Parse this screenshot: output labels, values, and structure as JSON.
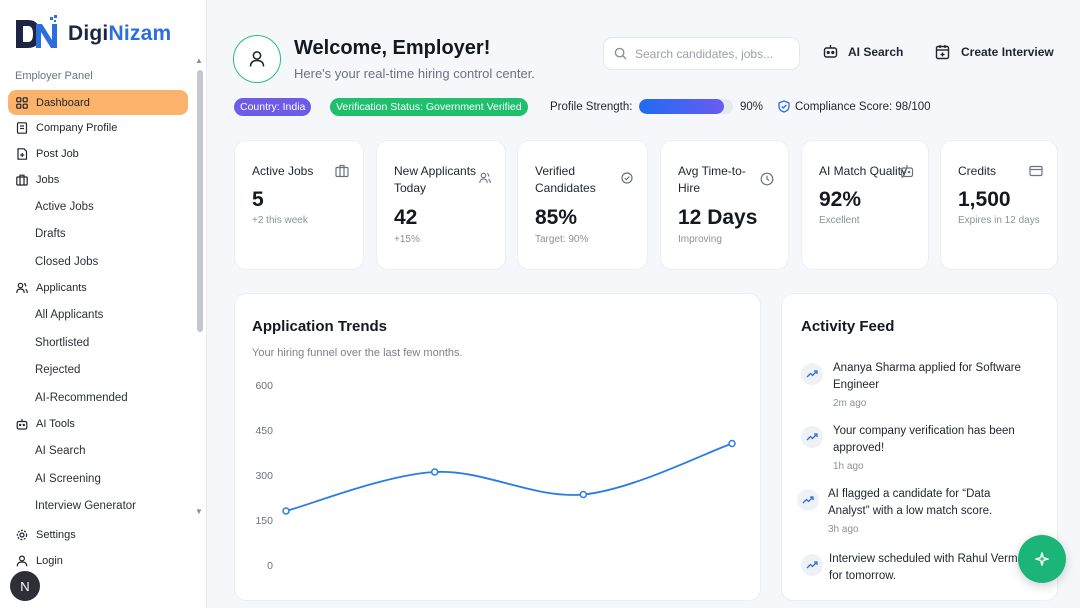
{
  "brand": {
    "name_part1": "Digi",
    "name_part2": "Nizam"
  },
  "sidebar": {
    "section_title": "Employer Panel",
    "items": [
      {
        "label": "Dashboard",
        "icon": "grid-icon",
        "active": true
      },
      {
        "label": "Company Profile",
        "icon": "building-icon"
      },
      {
        "label": "Post Job",
        "icon": "file-plus-icon"
      },
      {
        "label": "Jobs",
        "icon": "briefcase-icon"
      },
      {
        "label": "Active Jobs",
        "sub": true
      },
      {
        "label": "Drafts",
        "sub": true
      },
      {
        "label": "Closed Jobs",
        "sub": true
      },
      {
        "label": "Applicants",
        "icon": "users-icon"
      },
      {
        "label": "All Applicants",
        "sub": true
      },
      {
        "label": "Shortlisted",
        "sub": true
      },
      {
        "label": "Rejected",
        "sub": true
      },
      {
        "label": "AI-Recommended",
        "sub": true
      },
      {
        "label": "AI Tools",
        "icon": "robot-icon"
      },
      {
        "label": "AI Search",
        "sub": true
      },
      {
        "label": "AI Screening",
        "sub": true
      },
      {
        "label": "Interview Generator",
        "sub": true
      }
    ],
    "bottom": {
      "settings": "Settings",
      "login": "Login"
    },
    "avatar_letter": "N"
  },
  "header": {
    "title": "Welcome, Employer!",
    "subtitle": "Here's your real-time hiring control center.",
    "search_placeholder": "Search candidates, jobs...",
    "ai_search": "AI Search",
    "create_interview": "Create Interview"
  },
  "status": {
    "country": "Country: India",
    "verification": "Verification Status: Government Verified",
    "profile_label": "Profile Strength:",
    "profile_value": "90%",
    "profile_fraction": 0.9,
    "compliance": "Compliance Score: 98/100"
  },
  "stats": [
    {
      "title": "Active Jobs",
      "value": "5",
      "sub": "+2 this week"
    },
    {
      "title": "New Applicants Today",
      "value": "42",
      "sub": "+15%"
    },
    {
      "title": "Verified Candidates",
      "value": "85%",
      "sub": "Target: 90%"
    },
    {
      "title": "Avg Time-to-Hire",
      "value": "12 Days",
      "sub": "Improving"
    },
    {
      "title": "AI Match Quality",
      "value": "92%",
      "sub": "Excellent"
    },
    {
      "title": "Credits",
      "value": "1,500",
      "sub": "Expires in 12 days"
    }
  ],
  "trends": {
    "title": "Application Trends",
    "subtitle": "Your hiring funnel over the last few months."
  },
  "chart_data": {
    "type": "line",
    "x": [
      0,
      1,
      2,
      3
    ],
    "values": [
      180,
      310,
      235,
      405
    ],
    "yticks": [
      0,
      150,
      300,
      450,
      600
    ],
    "ylim": [
      0,
      600
    ],
    "color": "#2a7be4"
  },
  "activity": {
    "title": "Activity Feed",
    "items": [
      {
        "text": "Ananya Sharma applied for Software Engineer",
        "time": "2m ago"
      },
      {
        "text": "Your company verification has been approved!",
        "time": "1h ago"
      },
      {
        "text": "AI flagged a candidate for “Data Analyst” with a low match score.",
        "time": "3h ago"
      },
      {
        "text": "Interview scheduled with Rahul Verma for tomorrow.",
        "time": ""
      }
    ]
  }
}
